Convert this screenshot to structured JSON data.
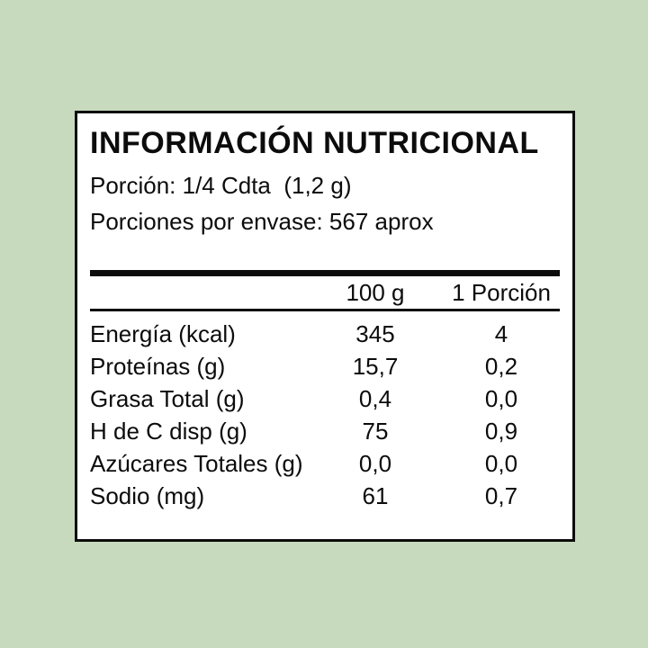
{
  "colors": {
    "background": "#c8dabd",
    "card_background": "#ffffff",
    "border": "#0c0c0c",
    "text": "#0c0c0c"
  },
  "label": {
    "title": "INFORMACIÓN NUTRICIONAL",
    "serving_line": "Porción: 1/4 Cdta  (1,2 g)",
    "servings_per_container_line": "Porciones por envase: 567 aprox",
    "columns": [
      "100 g",
      "1 Porción"
    ],
    "rows": [
      {
        "name": "Energía (kcal)",
        "per_100g": "345",
        "per_serving": "4"
      },
      {
        "name": "Proteínas (g)",
        "per_100g": "15,7",
        "per_serving": "0,2"
      },
      {
        "name": "Grasa Total (g)",
        "per_100g": "0,4",
        "per_serving": "0,0"
      },
      {
        "name": "H de C disp (g)",
        "per_100g": "75",
        "per_serving": "0,9"
      },
      {
        "name": "Azúcares Totales (g)",
        "per_100g": "0,0",
        "per_serving": "0,0"
      },
      {
        "name": "Sodio (mg)",
        "per_100g": "61",
        "per_serving": "0,7"
      }
    ]
  }
}
